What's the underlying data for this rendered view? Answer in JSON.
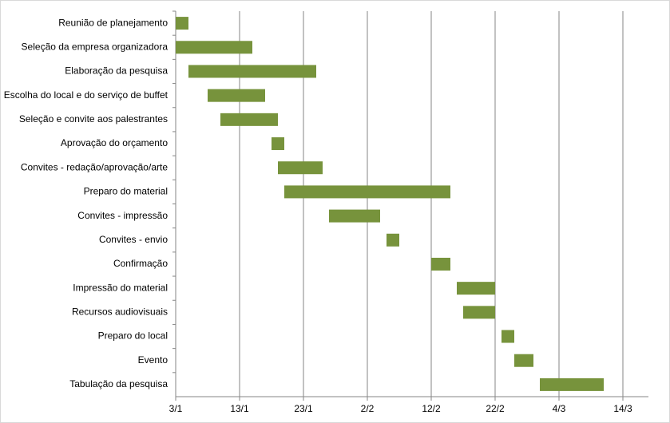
{
  "chart_data": {
    "type": "gantt",
    "categories": [
      "Reunião de planejamento",
      "Seleção da empresa organizadora",
      "Elaboração da pesquisa",
      "Escolha do local e do serviço de buffet",
      "Seleção e convite aos palestrantes",
      "Aprovação do orçamento",
      "Convites - redação/aprovação/arte",
      "Preparo do material",
      "Convites - impressão",
      "Convites - envio",
      "Confirmação",
      "Impressão do material",
      "Recursos audiovisuais",
      "Preparo do local",
      "Evento",
      "Tabulação da pesquisa"
    ],
    "start": [
      3,
      3,
      5,
      8,
      10,
      18,
      19,
      20,
      27,
      36,
      43,
      47,
      48,
      54,
      56,
      60
    ],
    "end": [
      5,
      15,
      25,
      17,
      19,
      20,
      26,
      46,
      35,
      38,
      46,
      53,
      53,
      56,
      59,
      70
    ],
    "color": "#77933c",
    "xlim": [
      3,
      77
    ],
    "xticks": [
      {
        "value": 3,
        "label": "3/1"
      },
      {
        "value": 13,
        "label": "13/1"
      },
      {
        "value": 23,
        "label": "23/1"
      },
      {
        "value": 33,
        "label": "2/2"
      },
      {
        "value": 43,
        "label": "12/2"
      },
      {
        "value": 53,
        "label": "22/2"
      },
      {
        "value": 63,
        "label": "4/3"
      },
      {
        "value": 73,
        "label": "14/3"
      }
    ],
    "grid": true
  }
}
